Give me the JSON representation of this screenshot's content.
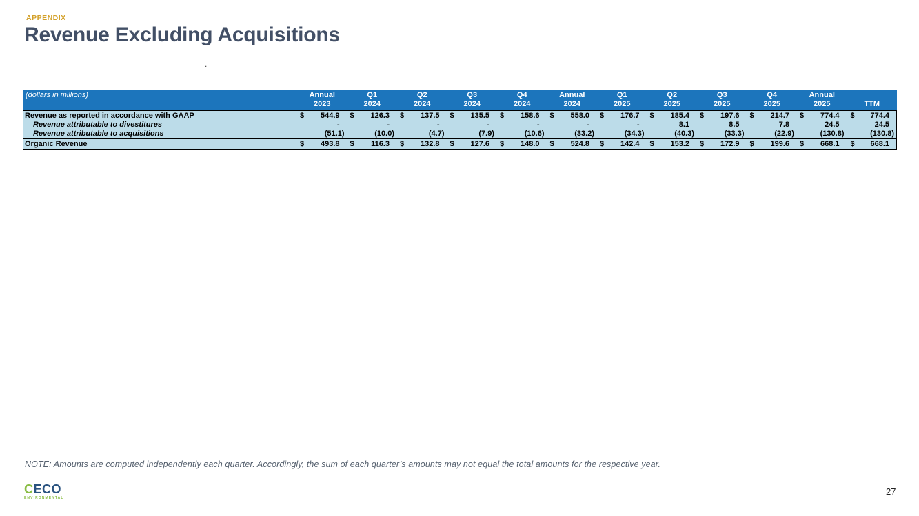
{
  "header": {
    "eyebrow": "APPENDIX",
    "title": "Revenue Excluding Acquisitions",
    "stray_dot": "."
  },
  "table": {
    "label_header": "(dollars in millions)",
    "columns": [
      {
        "line1": "Annual",
        "line2": "2023"
      },
      {
        "line1": "Q1",
        "line2": "2024"
      },
      {
        "line1": "Q2",
        "line2": "2024"
      },
      {
        "line1": "Q3",
        "line2": "2024"
      },
      {
        "line1": "Q4",
        "line2": "2024"
      },
      {
        "line1": "Annual",
        "line2": "2024"
      },
      {
        "line1": "Q1",
        "line2": "2025"
      },
      {
        "line1": "Q2",
        "line2": "2025"
      },
      {
        "line1": "Q3",
        "line2": "2025"
      },
      {
        "line1": "Q4",
        "line2": "2025"
      },
      {
        "line1": "Annual",
        "line2": "2025"
      },
      {
        "line1": "",
        "line2": "TTM"
      }
    ],
    "rows": [
      {
        "label": "Revenue as reported in accordance with GAAP",
        "style": "main",
        "dollar": true,
        "values": [
          "544.9",
          "126.3",
          "137.5",
          "135.5",
          "158.6",
          "558.0",
          "176.7",
          "185.4",
          "197.6",
          "214.7",
          "774.4",
          "774.4"
        ]
      },
      {
        "label": "Revenue attributable to divestitures",
        "style": "sub",
        "dollar": false,
        "values": [
          "-",
          "-",
          "-",
          "-",
          "-",
          "-",
          "-",
          "8.1",
          "8.5",
          "7.8",
          "24.5",
          "24.5"
        ]
      },
      {
        "label": "Revenue attributable to acquisitions",
        "style": "sub",
        "dollar": false,
        "values": [
          "(51.1)",
          "(10.0)",
          "(4.7)",
          "(7.9)",
          "(10.6)",
          "(33.2)",
          "(34.3)",
          "(40.3)",
          "(33.3)",
          "(22.9)",
          "(130.8)",
          "(130.8)"
        ]
      },
      {
        "label": "Organic Revenue",
        "style": "total",
        "dollar": true,
        "values": [
          "493.8",
          "116.3",
          "132.8",
          "127.6",
          "148.0",
          "524.8",
          "142.4",
          "153.2",
          "172.9",
          "199.6",
          "668.1",
          "668.1"
        ]
      }
    ]
  },
  "footnote": "NOTE: Amounts are computed independently each quarter. Accordingly, the sum of each quarter’s amounts may not equal the total amounts for the respective year.",
  "logo": {
    "part1": "C",
    "part2": "ECO",
    "subtitle": "ENVIRONMENTAL"
  },
  "page_number": "27",
  "colors": {
    "header_blue": "#1C75BC",
    "body_blue": "#BCDCE9",
    "accent_gold": "#D3A029",
    "title_navy": "#424F66",
    "logo_green": "#8ABD45",
    "logo_blue": "#2A5380"
  }
}
